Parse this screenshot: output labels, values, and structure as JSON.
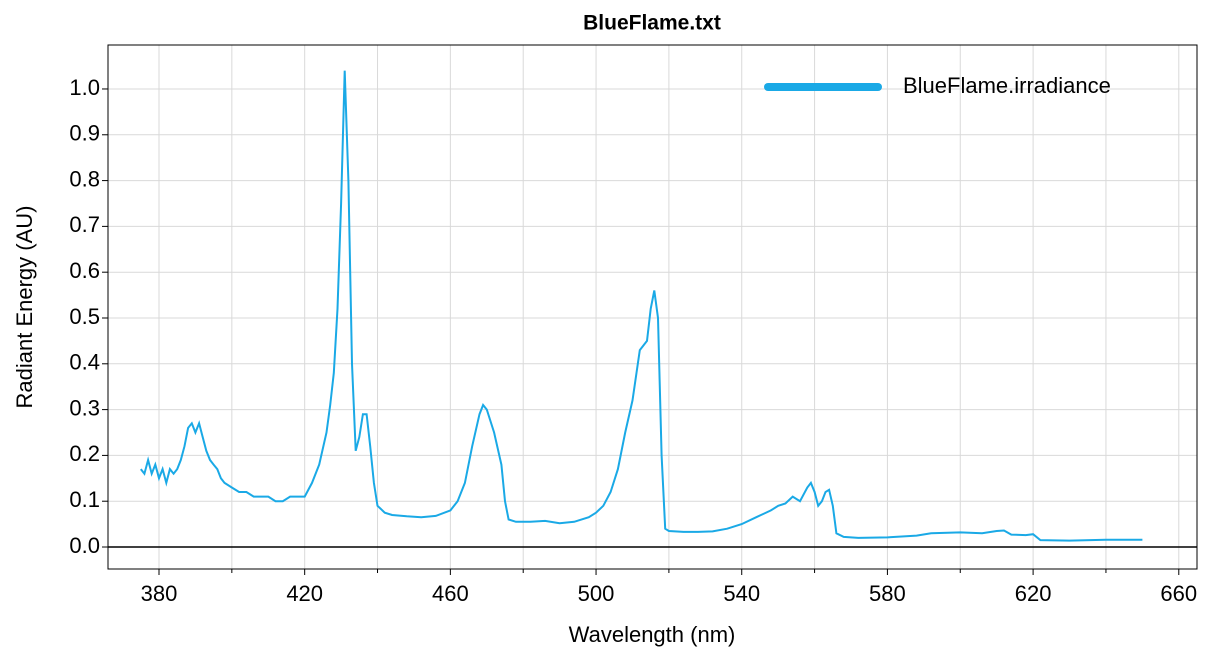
{
  "chart_data": {
    "type": "line",
    "title": "BlueFlame.txt",
    "xlabel": "Wavelength (nm)",
    "ylabel": "Radiant Energy (AU)",
    "xlim": [
      366,
      665
    ],
    "ylim": [
      -0.048,
      1.096
    ],
    "xticks": [
      380,
      420,
      460,
      500,
      540,
      580,
      620,
      660
    ],
    "xminorticks": [
      400,
      440,
      480,
      520,
      560,
      600,
      640
    ],
    "yticks": [
      {
        "value": 0,
        "label": "0.0"
      },
      0.1,
      0.2,
      0.3,
      0.4,
      0.5,
      0.6,
      0.7,
      0.8,
      0.9,
      {
        "value": 1,
        "label": "1.0"
      }
    ],
    "grid": true,
    "legend": "upper right",
    "x": [
      375,
      376,
      377,
      378,
      379,
      380,
      381,
      382,
      383,
      384,
      385,
      386,
      387,
      388,
      389,
      390,
      391,
      392,
      393,
      394,
      395,
      396,
      397,
      398,
      400,
      402,
      404,
      406,
      408,
      410,
      412,
      414,
      416,
      418,
      420,
      422,
      424,
      426,
      427,
      428,
      429,
      430,
      431,
      432,
      433,
      434,
      435,
      436,
      437,
      438,
      439,
      440,
      442,
      444,
      448,
      452,
      456,
      460,
      462,
      464,
      466,
      468,
      469,
      470,
      472,
      474,
      475,
      476,
      478,
      482,
      486,
      490,
      494,
      498,
      500,
      502,
      504,
      506,
      508,
      510,
      512,
      513,
      514,
      515,
      516,
      517,
      518,
      519,
      520,
      524,
      528,
      532,
      536,
      540,
      544,
      548,
      550,
      552,
      554,
      556,
      558,
      559,
      560,
      561,
      562,
      563,
      564,
      565,
      566,
      568,
      572,
      580,
      588,
      592,
      600,
      606,
      610,
      612,
      614,
      618,
      620,
      622,
      630,
      640,
      650
    ],
    "series": [
      {
        "name": "BlueFlame.irradiance",
        "color": "#1aa9e6",
        "values": [
          0.17,
          0.16,
          0.19,
          0.16,
          0.18,
          0.15,
          0.17,
          0.14,
          0.17,
          0.16,
          0.17,
          0.19,
          0.22,
          0.26,
          0.27,
          0.25,
          0.27,
          0.24,
          0.21,
          0.19,
          0.18,
          0.17,
          0.15,
          0.14,
          0.13,
          0.12,
          0.12,
          0.11,
          0.11,
          0.11,
          0.1,
          0.1,
          0.11,
          0.11,
          0.11,
          0.14,
          0.18,
          0.25,
          0.31,
          0.38,
          0.52,
          0.75,
          1.04,
          0.8,
          0.4,
          0.21,
          0.24,
          0.29,
          0.29,
          0.22,
          0.14,
          0.09,
          0.075,
          0.07,
          0.067,
          0.065,
          0.068,
          0.08,
          0.1,
          0.14,
          0.22,
          0.29,
          0.31,
          0.3,
          0.25,
          0.18,
          0.1,
          0.06,
          0.055,
          0.055,
          0.057,
          0.052,
          0.055,
          0.065,
          0.075,
          0.09,
          0.12,
          0.17,
          0.25,
          0.32,
          0.43,
          0.44,
          0.45,
          0.52,
          0.56,
          0.5,
          0.2,
          0.04,
          0.035,
          0.033,
          0.033,
          0.034,
          0.04,
          0.05,
          0.065,
          0.08,
          0.09,
          0.095,
          0.11,
          0.1,
          0.13,
          0.14,
          0.12,
          0.09,
          0.1,
          0.12,
          0.125,
          0.09,
          0.03,
          0.022,
          0.02,
          0.021,
          0.025,
          0.03,
          0.032,
          0.03,
          0.035,
          0.036,
          0.027,
          0.026,
          0.028,
          0.015,
          0.014,
          0.016,
          0.016
        ]
      }
    ]
  }
}
